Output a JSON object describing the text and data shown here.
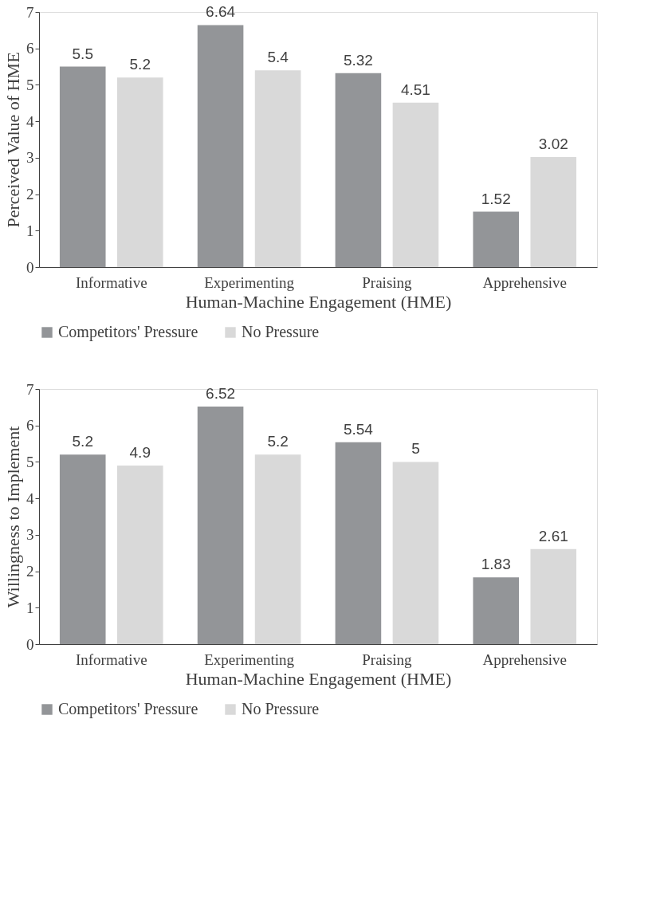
{
  "chart_data": [
    {
      "type": "bar",
      "categories": [
        "Informative",
        "Experimenting",
        "Praising",
        "Apprehensive"
      ],
      "xlabel": "Human-Machine Engagement (HME)",
      "ylabel": "Perceived Value of HME",
      "ylim": [
        0,
        7
      ],
      "yticks": [
        0,
        1,
        2,
        3,
        4,
        5,
        6,
        7
      ],
      "grid": false,
      "legend": "bottom",
      "data_labels": true,
      "series": [
        {
          "name": "Competitors' Pressure",
          "color": "#939598",
          "values": [
            5.5,
            6.64,
            5.32,
            1.52
          ]
        },
        {
          "name": "No Pressure",
          "color": "#d9d9d9",
          "values": [
            5.2,
            5.4,
            4.51,
            3.02
          ]
        }
      ]
    },
    {
      "type": "bar",
      "categories": [
        "Informative",
        "Experimenting",
        "Praising",
        "Apprehensive"
      ],
      "xlabel": "Human-Machine Engagement (HME)",
      "ylabel": "Willingness to Implement",
      "ylim": [
        0,
        7
      ],
      "yticks": [
        0,
        1,
        2,
        3,
        4,
        5,
        6,
        7
      ],
      "grid": false,
      "legend": "bottom",
      "data_labels": true,
      "series": [
        {
          "name": "Competitors' Pressure",
          "color": "#939598",
          "values": [
            5.2,
            6.52,
            5.54,
            1.83
          ]
        },
        {
          "name": "No Pressure",
          "color": "#d9d9d9",
          "values": [
            4.9,
            5.2,
            5,
            2.61
          ]
        }
      ]
    }
  ]
}
